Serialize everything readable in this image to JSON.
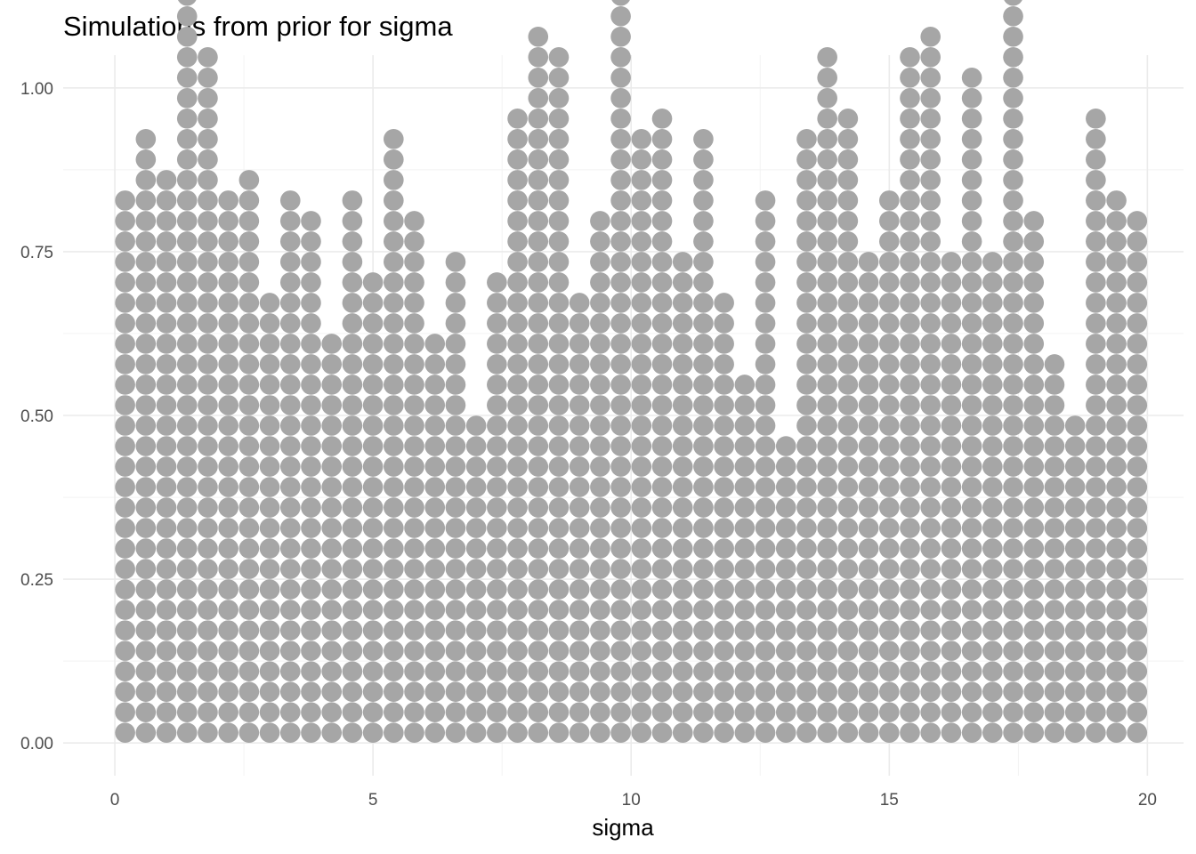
{
  "chart_data": {
    "type": "dotplot",
    "title": "Simulations from prior for sigma",
    "xlabel": "sigma",
    "ylabel": "",
    "xlim": [
      -1,
      20.7
    ],
    "ylim": [
      -0.05,
      1.05
    ],
    "x_ticks": [
      0,
      5,
      10,
      15,
      20
    ],
    "x_tick_labels": [
      "0",
      "5",
      "10",
      "15",
      "20"
    ],
    "y_ticks": [
      0,
      0.25,
      0.5,
      0.75,
      1
    ],
    "y_tick_labels": [
      "0.00",
      "0.25",
      "0.50",
      "0.75",
      "1.00"
    ],
    "grid": true,
    "legend": "none",
    "dot_color": "#a6a6a6",
    "dot_y_step": 0.03125,
    "bin_centers": [
      0.2,
      0.6,
      1.0,
      1.4,
      1.8,
      2.2,
      2.6,
      3.0,
      3.4,
      3.8,
      4.2,
      4.6,
      5.0,
      5.4,
      5.8,
      6.2,
      6.6,
      7.0,
      7.4,
      7.8,
      8.2,
      8.6,
      9.0,
      9.4,
      9.8,
      10.2,
      10.6,
      11.0,
      11.4,
      11.8,
      12.2,
      12.6,
      13.0,
      13.4,
      13.8,
      14.2,
      14.6,
      15.0,
      15.4,
      15.8,
      16.2,
      16.6,
      17.0,
      17.4,
      17.8,
      18.2,
      18.6,
      19.0,
      19.4,
      19.8
    ],
    "dot_counts": [
      27,
      30,
      28,
      37,
      34,
      27,
      28,
      22,
      27,
      26,
      20,
      27,
      23,
      30,
      26,
      20,
      24,
      16,
      23,
      31,
      35,
      34,
      22,
      26,
      37,
      30,
      31,
      24,
      30,
      22,
      18,
      27,
      15,
      30,
      34,
      31,
      24,
      27,
      34,
      35,
      24,
      33,
      24,
      37,
      26,
      19,
      16,
      31,
      27,
      26
    ]
  }
}
